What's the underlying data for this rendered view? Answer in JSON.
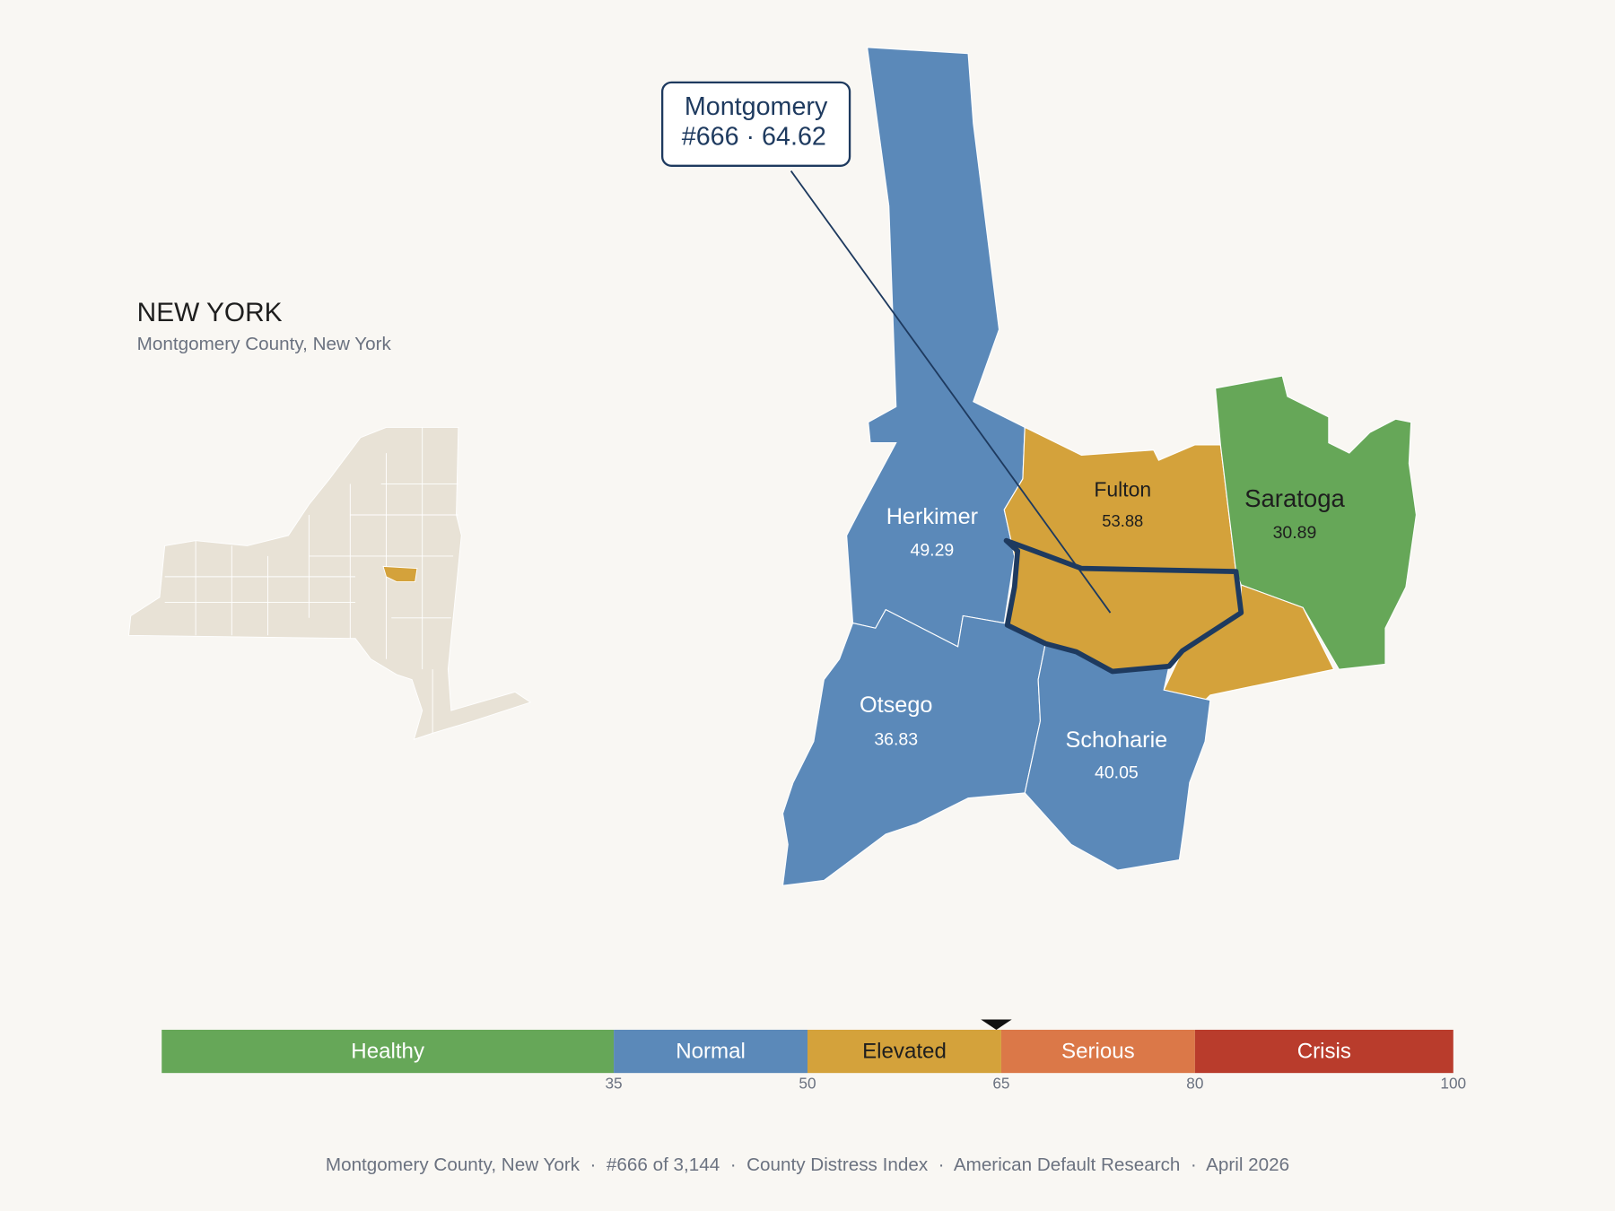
{
  "header": {
    "title": "NEW YORK",
    "subtitle": "Montgomery County, New York"
  },
  "callout": {
    "name": "Montgomery",
    "detail": "#666 · 64.62"
  },
  "counties": [
    {
      "name": "Herkimer",
      "score": 49.29
    },
    {
      "name": "Fulton",
      "score": 53.88
    },
    {
      "name": "Saratoga",
      "score": 30.89
    },
    {
      "name": "Otsego",
      "score": 36.83
    },
    {
      "name": "Schoharie",
      "score": 40.05
    }
  ],
  "legend": {
    "lim": [
      0,
      100
    ],
    "ticks": [
      35,
      50,
      65,
      80,
      100
    ],
    "marker": 64.62,
    "bands": [
      {
        "label": "Healthy",
        "color": "#66a758"
      },
      {
        "label": "Normal",
        "color": "#5b89b9"
      },
      {
        "label": "Elevated",
        "color": "#d4a23b"
      },
      {
        "label": "Serious",
        "color": "#db7848"
      },
      {
        "label": "Crisis",
        "color": "#b93c2c"
      }
    ]
  },
  "footer": "Montgomery County, New York  ·  #666 of 3,144  ·  County Distress Index  ·  American Default Research  ·  April 2026"
}
